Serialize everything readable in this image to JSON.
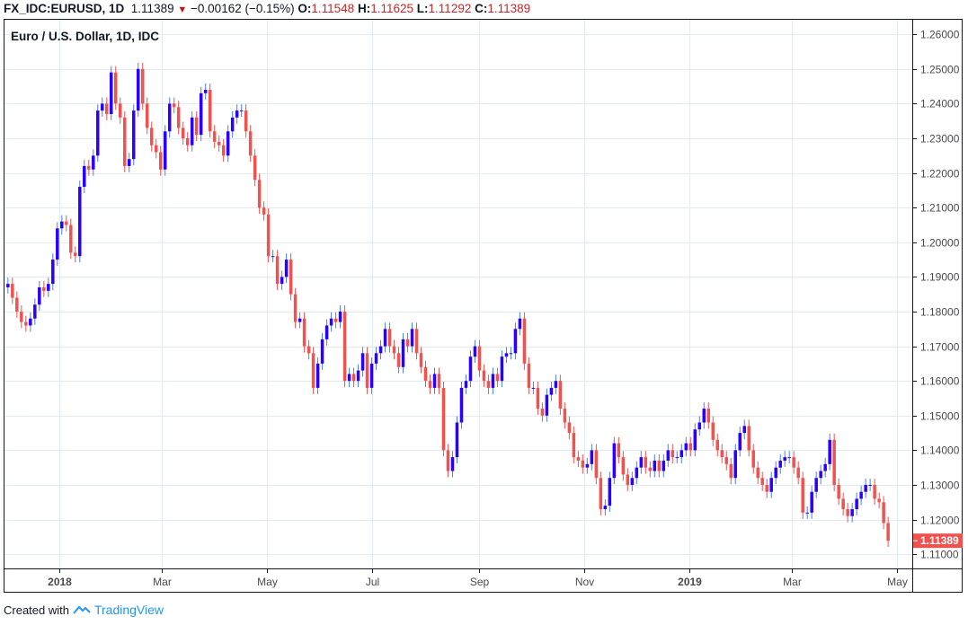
{
  "header": {
    "symbol": "FX_IDC:EURUSD, 1D",
    "last": "1.11389",
    "change": "−0.00162 (−0.15%)",
    "o_label": "O:",
    "o": "1.11548",
    "h_label": "H:",
    "h": "1.11625",
    "l_label": "L:",
    "l": "1.11292",
    "c_label": "C:",
    "c": "1.11389"
  },
  "footer": {
    "created_with": "Created with",
    "brand": "TradingView"
  },
  "chart_data": {
    "type": "candlestick",
    "title": "Euro / U.S. Dollar, 1D, IDC",
    "ylim": [
      1.1059,
      1.2642
    ],
    "yticks": [
      "1.11000",
      "1.12000",
      "1.13000",
      "1.14000",
      "1.15000",
      "1.16000",
      "1.17000",
      "1.18000",
      "1.19000",
      "1.20000",
      "1.21000",
      "1.22000",
      "1.23000",
      "1.24000",
      "1.25000",
      "1.26000"
    ],
    "xlim": [
      "2017-11-30",
      "2019-05-10"
    ],
    "xticks": [
      {
        "date": "2018-01-01",
        "label": "2018",
        "bold": true
      },
      {
        "date": "2018-03-01",
        "label": "Mar"
      },
      {
        "date": "2018-05-01",
        "label": "May"
      },
      {
        "date": "2018-07-01",
        "label": "Jul"
      },
      {
        "date": "2018-09-01",
        "label": "Sep"
      },
      {
        "date": "2018-11-01",
        "label": "Nov"
      },
      {
        "date": "2019-01-01",
        "label": "2019",
        "bold": true
      },
      {
        "date": "2019-03-01",
        "label": "Mar"
      },
      {
        "date": "2019-05-01",
        "label": "May"
      }
    ],
    "first_date": "2017-12-02",
    "last_date": "2019-04-26",
    "last_price_label": "1.11389",
    "close": [
      1.188,
      1.184,
      1.18,
      1.177,
      1.176,
      1.178,
      1.182,
      1.187,
      1.186,
      1.188,
      1.195,
      1.204,
      1.206,
      1.205,
      1.197,
      1.196,
      1.216,
      1.222,
      1.221,
      1.225,
      1.238,
      1.24,
      1.237,
      1.249,
      1.24,
      1.236,
      1.222,
      1.224,
      1.238,
      1.25,
      1.24,
      1.233,
      1.228,
      1.226,
      1.221,
      1.232,
      1.24,
      1.239,
      1.233,
      1.23,
      1.228,
      1.236,
      1.231,
      1.243,
      1.244,
      1.232,
      1.229,
      1.228,
      1.225,
      1.232,
      1.236,
      1.238,
      1.238,
      1.232,
      1.225,
      1.218,
      1.21,
      1.208,
      1.196,
      1.196,
      1.188,
      1.19,
      1.195,
      1.185,
      1.177,
      1.178,
      1.17,
      1.168,
      1.158,
      1.165,
      1.172,
      1.176,
      1.178,
      1.177,
      1.18,
      1.16,
      1.162,
      1.16,
      1.163,
      1.168,
      1.158,
      1.165,
      1.168,
      1.17,
      1.175,
      1.17,
      1.168,
      1.164,
      1.172,
      1.17,
      1.175,
      1.168,
      1.164,
      1.16,
      1.158,
      1.162,
      1.158,
      1.14,
      1.134,
      1.138,
      1.148,
      1.158,
      1.16,
      1.167,
      1.17,
      1.163,
      1.16,
      1.158,
      1.162,
      1.16,
      1.167,
      1.168,
      1.168,
      1.175,
      1.178,
      1.165,
      1.158,
      1.158,
      1.152,
      1.15,
      1.156,
      1.158,
      1.16,
      1.152,
      1.148,
      1.145,
      1.138,
      1.137,
      1.135,
      1.136,
      1.14,
      1.132,
      1.123,
      1.124,
      1.132,
      1.142,
      1.138,
      1.133,
      1.13,
      1.132,
      1.135,
      1.138,
      1.135,
      1.134,
      1.137,
      1.134,
      1.137,
      1.14,
      1.138,
      1.138,
      1.14,
      1.142,
      1.14,
      1.146,
      1.148,
      1.152,
      1.148,
      1.143,
      1.14,
      1.138,
      1.136,
      1.132,
      1.14,
      1.145,
      1.147,
      1.14,
      1.135,
      1.132,
      1.13,
      1.128,
      1.132,
      1.135,
      1.137,
      1.138,
      1.138,
      1.135,
      1.132,
      1.122,
      1.122,
      1.128,
      1.132,
      1.134,
      1.136,
      1.143,
      1.13,
      1.126,
      1.123,
      1.121,
      1.123,
      1.126,
      1.128,
      1.13,
      1.13,
      1.126,
      1.125,
      1.119,
      1.11389
    ],
    "colors": {
      "up_body": "#2a00ff",
      "up_wick": "#4a7ef0",
      "down": "#ef5350",
      "grid": "#e1ecf2",
      "axis_text": "#4a4a4a"
    }
  }
}
